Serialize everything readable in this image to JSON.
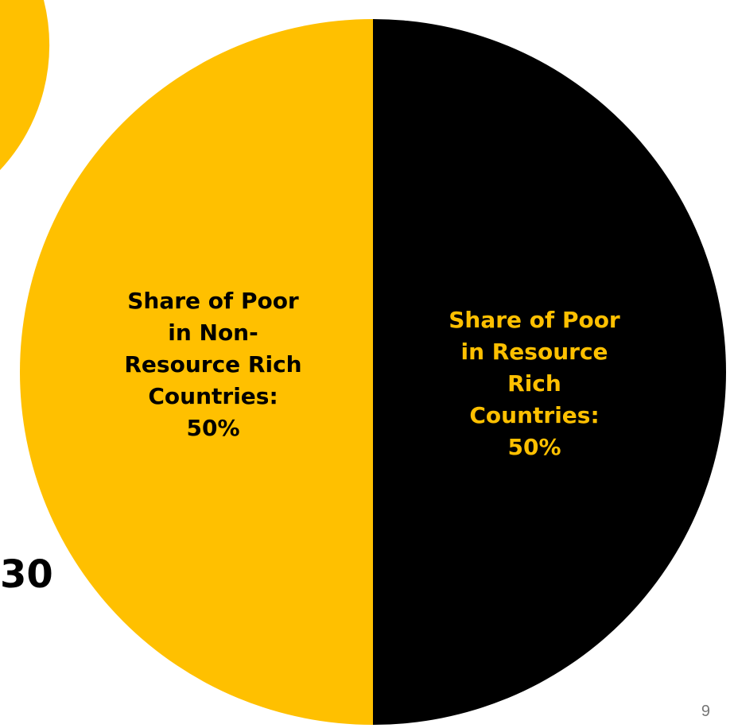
{
  "chart_data": {
    "type": "pie",
    "categories": [
      "Share of Poor in Non-Resource Rich Countries",
      "Share of Poor in Resource Rich Countries"
    ],
    "values": [
      50,
      50
    ],
    "labels": [
      "Share of Poor\nin Non-\nResource Rich\nCountries:\n50%",
      "Share of Poor\nin Resource\nRich Countries:\n50%"
    ],
    "colors": [
      "#FFC000",
      "#000000"
    ],
    "label_colors": [
      "#000000",
      "#FFC000"
    ],
    "legend": "none"
  },
  "slide": {
    "partial_number": "30",
    "page_number": "9",
    "decor_color": "#FFC000"
  }
}
